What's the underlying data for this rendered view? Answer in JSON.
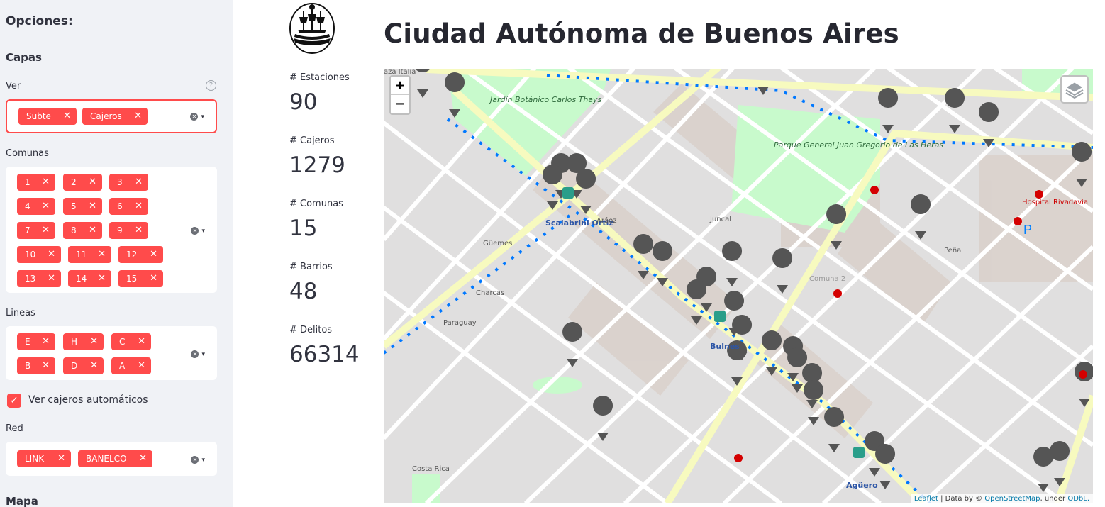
{
  "sidebar": {
    "title": "Opciones:",
    "section_capas": "Capas",
    "ver": {
      "label": "Ver",
      "chips": [
        "Subte",
        "Cajeros"
      ]
    },
    "comunas": {
      "label": "Comunas",
      "chips": [
        "1",
        "2",
        "3",
        "4",
        "5",
        "6",
        "7",
        "8",
        "9",
        "10",
        "11",
        "12",
        "13",
        "14",
        "15"
      ]
    },
    "lineas": {
      "label": "Lineas",
      "chips": [
        "E",
        "H",
        "C",
        "B",
        "D",
        "A"
      ]
    },
    "checkbox": {
      "label": "Ver cajeros automáticos",
      "checked": true
    },
    "red": {
      "label": "Red",
      "chips": [
        "LINK",
        "BANELCO"
      ]
    },
    "section_mapa": "Mapa",
    "help": "?",
    "chip_remove": "✕",
    "clear": "✕",
    "dropdown": "▾"
  },
  "metrics": [
    {
      "label": "# Estaciones",
      "value": "90"
    },
    {
      "label": "# Cajeros",
      "value": "1279"
    },
    {
      "label": "# Comunas",
      "value": "15"
    },
    {
      "label": "# Barrios",
      "value": "48"
    },
    {
      "label": "# Delitos",
      "value": "66314"
    }
  ],
  "page": {
    "title": "Ciudad Autónoma de Buenos Aires"
  },
  "map": {
    "zoom_in": "+",
    "zoom_out": "−",
    "attribution": {
      "leaflet": "Leaflet",
      "data_by": " | Data by © ",
      "osm": "OpenStreetMap",
      "under": ", under ",
      "odbl": "ODbL."
    },
    "labels": {
      "plaza_italia": "aza Italia",
      "jardin": "Jardín Botánico Carlos Thays",
      "parque": "Parque General Juan Gregorio de Las Heras",
      "scalabrini": "Scalabrini Ortiz",
      "bulnes": "Bulnes",
      "aguero": "Agüero",
      "hospital_rivadavia": "Hospital Rivadavia",
      "costa_rica": "Costa Rica",
      "comuna2": "Comuna 2",
      "guemes": "Güemes",
      "charcas": "Charcas",
      "araoz": "Aráoz",
      "juncal": "Juncal",
      "pena": "Peña",
      "paraguay": "Paraguay"
    },
    "colors": {
      "atm": "#555555",
      "subte": "#2a9e8a",
      "avenue": "#f7fabf",
      "park": "#c8facc",
      "rail": "#0078ff"
    }
  }
}
